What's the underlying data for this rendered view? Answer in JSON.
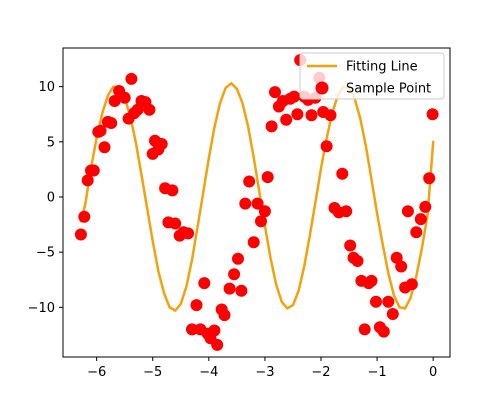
{
  "chart_data": {
    "type": "scatter",
    "title": "",
    "xlabel": "",
    "ylabel": "",
    "xlim": [
      -6.6,
      0.3
    ],
    "ylim": [
      -14.5,
      13.5
    ],
    "xticks": [
      -6,
      -5,
      -4,
      -3,
      -2,
      -1,
      0
    ],
    "yticks": [
      -10,
      -5,
      0,
      5,
      10
    ],
    "xtick_labels": [
      "−6",
      "−5",
      "−4",
      "−3",
      "−2",
      "−1",
      "0"
    ],
    "ytick_labels": [
      "−10",
      "−5",
      "0",
      "5",
      "10"
    ],
    "grid": false,
    "legend": {
      "position": "top-right",
      "entries": [
        {
          "label": "Fitting Line",
          "kind": "line",
          "color": "#f2a20c"
        },
        {
          "label": "Sample Point",
          "kind": "marker",
          "color": "#ff0000"
        }
      ]
    },
    "series": [
      {
        "name": "Fitting Line",
        "kind": "line",
        "color": "#f2a20c",
        "x": [
          -6.283,
          -6.2,
          -6.1,
          -6.0,
          -5.9,
          -5.8,
          -5.7,
          -5.6,
          -5.5,
          -5.4,
          -5.3,
          -5.2,
          -5.1,
          -5.0,
          -4.9,
          -4.8,
          -4.7,
          -4.6,
          -4.5,
          -4.4,
          -4.3,
          -4.2,
          -4.1,
          -4.0,
          -3.9,
          -3.8,
          -3.7,
          -3.6,
          -3.5,
          -3.4,
          -3.3,
          -3.2,
          -3.1,
          -3.0,
          -2.9,
          -2.8,
          -2.7,
          -2.6,
          -2.5,
          -2.4,
          -2.3,
          -2.2,
          -2.1,
          -2.0,
          -1.9,
          -1.8,
          -1.7,
          -1.6,
          -1.5,
          -1.4,
          -1.3,
          -1.2,
          -1.1,
          -1.0,
          -0.9,
          -0.8,
          -0.7,
          -0.6,
          -0.5,
          -0.4,
          -0.3,
          -0.2,
          -0.1,
          0.0
        ],
        "y": [
          -2.2,
          -0.6,
          2.6,
          5.4,
          7.6,
          9.2,
          10.0,
          9.9,
          9.0,
          7.3,
          4.9,
          2.0,
          -1.0,
          -4.0,
          -6.7,
          -8.7,
          -10.0,
          -10.3,
          -9.7,
          -8.1,
          -5.7,
          -2.7,
          0.4,
          3.5,
          6.3,
          8.5,
          9.9,
          10.3,
          9.8,
          8.5,
          6.4,
          3.6,
          0.5,
          -2.6,
          -5.5,
          -7.9,
          -9.5,
          -10.1,
          -9.8,
          -8.5,
          -6.3,
          -3.5,
          -0.5,
          2.6,
          5.3,
          7.6,
          9.2,
          10.0,
          9.9,
          8.9,
          7.1,
          4.6,
          1.6,
          -1.5,
          -4.3,
          -6.9,
          -8.9,
          -10.0,
          -10.1,
          -9.1,
          -7.2,
          -4.6,
          -1.6,
          5.0
        ]
      },
      {
        "name": "Sample Point",
        "kind": "scatter",
        "color": "#ff0000",
        "x": [
          -6.28,
          -6.22,
          -6.16,
          -6.1,
          -6.05,
          -5.97,
          -5.93,
          -5.86,
          -5.8,
          -5.74,
          -5.68,
          -5.6,
          -5.5,
          -5.43,
          -5.38,
          -5.33,
          -5.27,
          -5.2,
          -5.13,
          -5.06,
          -5.0,
          -4.96,
          -4.9,
          -4.84,
          -4.78,
          -4.72,
          -4.65,
          -4.6,
          -4.52,
          -4.45,
          -4.37,
          -4.3,
          -4.22,
          -4.15,
          -4.08,
          -4.02,
          -3.97,
          -3.9,
          -3.85,
          -3.77,
          -3.72,
          -3.63,
          -3.55,
          -3.48,
          -3.42,
          -3.35,
          -3.28,
          -3.2,
          -3.13,
          -3.07,
          -3.0,
          -2.95,
          -2.88,
          -2.82,
          -2.75,
          -2.68,
          -2.62,
          -2.55,
          -2.48,
          -2.42,
          -2.37,
          -2.3,
          -2.23,
          -2.17,
          -2.1,
          -2.03,
          -1.96,
          -1.9,
          -1.83,
          -1.76,
          -1.68,
          -1.62,
          -1.55,
          -1.48,
          -1.42,
          -1.35,
          -1.28,
          -1.22,
          -1.15,
          -1.1,
          -1.02,
          -0.95,
          -0.88,
          -0.8,
          -0.72,
          -0.65,
          -0.57,
          -0.5,
          -0.45,
          -0.38,
          -0.3,
          -0.22,
          -0.14,
          -0.07,
          -0.01
        ],
        "y": [
          -3.4,
          -1.8,
          1.5,
          2.4,
          2.4,
          5.9,
          6.0,
          4.5,
          6.8,
          6.7,
          8.7,
          9.6,
          9.0,
          7.1,
          10.7,
          7.6,
          7.9,
          8.7,
          8.6,
          7.9,
          3.9,
          5.1,
          4.3,
          4.8,
          0.8,
          -2.3,
          0.6,
          -2.4,
          -3.5,
          -3.2,
          -3.3,
          -12.0,
          -9.8,
          -12.0,
          -7.8,
          -12.4,
          -12.8,
          -12.1,
          -13.4,
          -10.2,
          -10.7,
          -8.3,
          -7.0,
          -5.6,
          -8.5,
          -0.6,
          1.4,
          -4.1,
          -0.6,
          -2.2,
          -1.3,
          1.8,
          6.4,
          9.5,
          8.2,
          8.7,
          7.0,
          8.9,
          9.1,
          7.5,
          12.4,
          9.1,
          8.8,
          7.4,
          9.0,
          10.8,
          7.7,
          4.6,
          7.4,
          -1.0,
          -1.4,
          2.1,
          -1.3,
          -4.4,
          -5.5,
          -5.8,
          -7.6,
          -12.0,
          -7.8,
          -7.6,
          -9.5,
          -11.8,
          -12.2,
          -9.5,
          -10.6,
          -5.5,
          -6.3,
          -8.2,
          -1.3,
          -7.9,
          -3.2,
          -2.0,
          -0.9,
          1.7,
          7.5
        ]
      }
    ]
  }
}
